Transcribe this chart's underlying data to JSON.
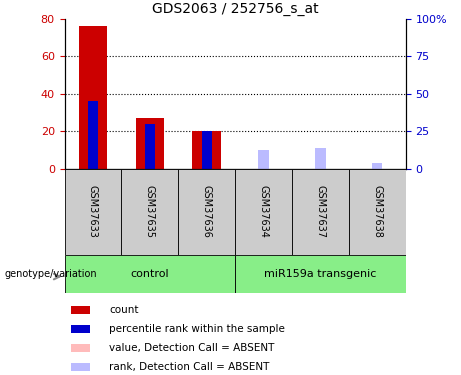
{
  "title": "GDS2063 / 252756_s_at",
  "samples": [
    "GSM37633",
    "GSM37635",
    "GSM37636",
    "GSM37634",
    "GSM37637",
    "GSM37638"
  ],
  "red_values": [
    76,
    27,
    20,
    0,
    0,
    0
  ],
  "blue_values": [
    36,
    24,
    20,
    0,
    0,
    0
  ],
  "pink_values": [
    0,
    0,
    0,
    3,
    5,
    0
  ],
  "lightblue_values": [
    0,
    0,
    0,
    10,
    11,
    3
  ],
  "ylim": [
    0,
    80
  ],
  "y2lim": [
    0,
    100
  ],
  "yticks": [
    0,
    20,
    40,
    60,
    80
  ],
  "y2ticks": [
    0,
    25,
    50,
    75,
    100
  ],
  "y2labels": [
    "0",
    "25",
    "50",
    "75",
    "100%"
  ],
  "red_color": "#cc0000",
  "blue_color": "#0000cc",
  "pink_color": "#ffbbbb",
  "lightblue_color": "#bbbbff",
  "group_bg_color": "#88ee88",
  "sample_bg_color": "#cccccc",
  "bar_width": 0.5,
  "blue_bar_width": 0.18,
  "legend_labels": [
    "count",
    "percentile rank within the sample",
    "value, Detection Call = ABSENT",
    "rank, Detection Call = ABSENT"
  ],
  "control_label": "control",
  "mir_label": "miR159a transgenic",
  "genotype_label": "genotype/variation",
  "grid_lines": [
    20,
    40,
    60
  ],
  "figsize": [
    4.61,
    3.75
  ],
  "dpi": 100
}
